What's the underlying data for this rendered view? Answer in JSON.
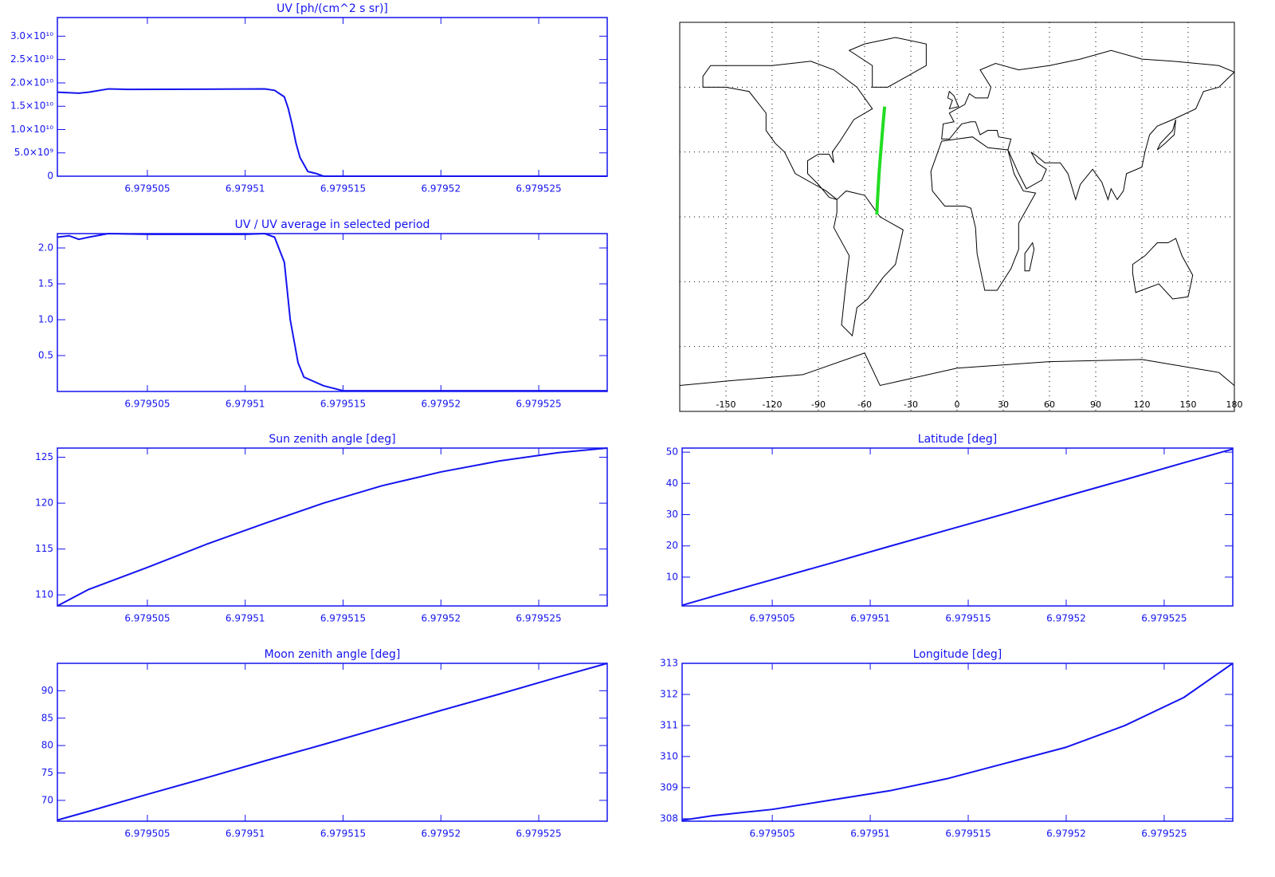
{
  "chart_data": [
    {
      "type": "line",
      "title": "UV [ph/(cm^2 s sr)]",
      "color": "#1414f0",
      "x": [
        6.9795004,
        6.9795015,
        6.979502,
        6.979503,
        6.979504,
        6.979511,
        6.9795115,
        6.979512,
        6.9795122,
        6.9795124,
        6.9795126,
        6.9795128,
        6.979513,
        6.9795132,
        6.9795136,
        6.979514,
        6.9795285
      ],
      "values": [
        18000000000,
        17800000000,
        18000000000,
        18700000000,
        18600000000,
        18700000000,
        18400000000,
        17000000000,
        14500000000,
        11000000000,
        7000000000,
        4000000000,
        2500000000,
        1000000000,
        600000000,
        0,
        0
      ],
      "xlim": [
        6.9795004,
        6.9795285
      ],
      "xticks": [
        6.979505,
        6.97951,
        6.979515,
        6.97952,
        6.979525
      ],
      "ylim": [
        0,
        34000000000
      ],
      "yticks": [
        0,
        {
          "value": 5000000000,
          "label": "5.0×10⁹"
        },
        {
          "value": 10000000000,
          "label": "1.0×10¹⁰"
        },
        {
          "value": 15000000000,
          "label": "1.5×10¹⁰"
        },
        {
          "value": 20000000000,
          "label": "2.0×10¹⁰"
        },
        {
          "value": 25000000000,
          "label": "2.5×10¹⁰"
        },
        {
          "value": 30000000000,
          "label": "3.0×10¹⁰"
        }
      ]
    },
    {
      "type": "line",
      "title": "UV / UV average in selected period",
      "color": "#1414f0",
      "x": [
        6.9795004,
        6.979501,
        6.9795015,
        6.979502,
        6.979503,
        6.979505,
        6.97951,
        6.979511,
        6.9795115,
        6.979512,
        6.9795123,
        6.9795127,
        6.979513,
        6.979514,
        6.979515,
        6.9795285
      ],
      "values": [
        2.15,
        2.17,
        2.12,
        2.15,
        2.2,
        2.19,
        2.19,
        2.2,
        2.15,
        1.8,
        1.0,
        0.4,
        0.2,
        0.08,
        0.01,
        0.01
      ],
      "xlim": [
        6.9795004,
        6.9795285
      ],
      "xticks": [
        6.979505,
        6.97951,
        6.979515,
        6.97952,
        6.979525
      ],
      "ylim": [
        0,
        2.2
      ],
      "yticks": [
        0.5,
        {
          "value": 1,
          "label": "1.0"
        },
        1.5,
        {
          "value": 2,
          "label": "2.0"
        }
      ]
    },
    {
      "type": "line",
      "title": "Sun zenith angle [deg]",
      "color": "#1414f0",
      "x": [
        6.9795004,
        6.979502,
        6.979505,
        6.979508,
        6.979511,
        6.979514,
        6.979517,
        6.97952,
        6.979523,
        6.979526,
        6.9795285
      ],
      "values": [
        108.8,
        110.6,
        113.0,
        115.5,
        117.8,
        120.0,
        121.9,
        123.4,
        124.6,
        125.5,
        126.0
      ],
      "xlim": [
        6.9795004,
        6.9795285
      ],
      "xticks": [
        6.979505,
        6.97951,
        6.979515,
        6.97952,
        6.979525
      ],
      "ylim": [
        108.8,
        126
      ],
      "yticks": [
        110,
        115,
        120,
        125
      ]
    },
    {
      "type": "line",
      "title": "Moon zenith angle [deg]",
      "color": "#1414f0",
      "x": [
        6.9795004,
        6.979502,
        6.979505,
        6.979508,
        6.979511,
        6.979514,
        6.979517,
        6.97952,
        6.979523,
        6.979526,
        6.9795285
      ],
      "values": [
        66.4,
        68.0,
        71.1,
        74.1,
        77.2,
        80.2,
        83.3,
        86.4,
        89.4,
        92.5,
        95.0
      ],
      "xlim": [
        6.9795004,
        6.9795285
      ],
      "xticks": [
        6.979505,
        6.97951,
        6.979515,
        6.97952,
        6.979525
      ],
      "ylim": [
        66.2,
        95
      ],
      "yticks": [
        70,
        75,
        80,
        85,
        90
      ]
    },
    {
      "type": "map",
      "color": "#22dd22",
      "x": [
        -52.05,
        -51.7,
        -51.2,
        -50.7,
        -50.1,
        -49.4,
        -48.6,
        -47.9,
        -47.0
      ],
      "values": [
        1,
        7,
        13,
        19,
        25,
        31,
        38,
        44,
        51
      ],
      "xlim": [
        -180,
        180
      ],
      "xticks": [
        -150,
        -120,
        -90,
        -60,
        -30,
        0,
        30,
        60,
        90,
        120,
        150,
        180
      ],
      "ylim": [
        -90,
        90
      ],
      "yticks": [
        -60,
        -30,
        0,
        30,
        60
      ],
      "grid": true
    },
    {
      "type": "line",
      "title": "Latitude [deg]",
      "color": "#1414f0",
      "x": [
        6.9795004,
        6.979502,
        6.979505,
        6.979508,
        6.979511,
        6.979514,
        6.979517,
        6.97952,
        6.979523,
        6.979526,
        6.9795285
      ],
      "values": [
        1,
        3.9,
        9.2,
        14.5,
        19.9,
        25.2,
        30.5,
        35.9,
        41.2,
        46.6,
        51.0
      ],
      "xlim": [
        6.9795004,
        6.9795285
      ],
      "xticks": [
        6.979505,
        6.97951,
        6.979515,
        6.97952,
        6.979525
      ],
      "ylim": [
        0.8,
        51.3
      ],
      "yticks": [
        10,
        20,
        30,
        40,
        50
      ]
    },
    {
      "type": "line",
      "title": "Longitude [deg]",
      "color": "#1414f0",
      "x": [
        6.9795004,
        6.979502,
        6.979505,
        6.979508,
        6.979511,
        6.979514,
        6.979517,
        6.97952,
        6.979523,
        6.979526,
        6.9795285
      ],
      "values": [
        307.95,
        308.1,
        308.3,
        308.6,
        308.9,
        309.3,
        309.8,
        310.3,
        311.0,
        311.9,
        313.0
      ],
      "xlim": [
        6.9795004,
        6.9795285
      ],
      "xticks": [
        6.979505,
        6.97951,
        6.979515,
        6.97952,
        6.979525
      ],
      "ylim": [
        307.92,
        313
      ],
      "yticks": [
        308,
        309,
        310,
        311,
        312,
        313
      ]
    }
  ]
}
